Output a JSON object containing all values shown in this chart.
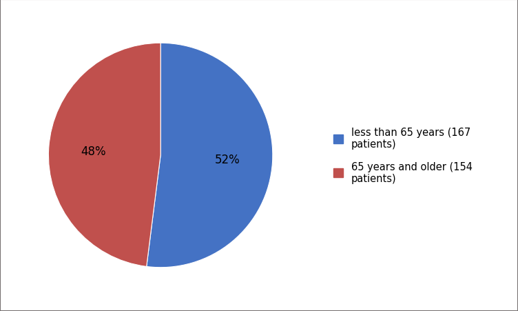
{
  "slices": [
    52,
    48
  ],
  "labels": [
    "less than 65 years (167\npatients)",
    "65 years and older (154\npatients)"
  ],
  "colors": [
    "#4472C4",
    "#C0504D"
  ],
  "startangle": 90,
  "background_color": "#ffffff",
  "border_color": "#767171",
  "legend_fontsize": 10.5,
  "autopct_fontsize": 12,
  "pctdistance": 0.6
}
